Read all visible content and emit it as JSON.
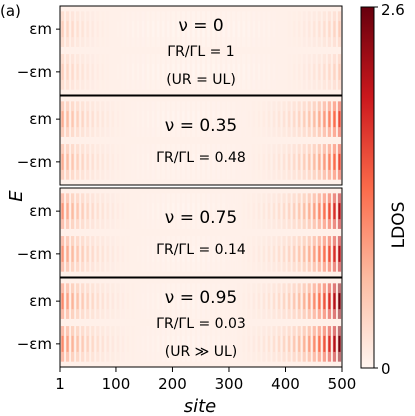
{
  "panel_label": "(a)",
  "chart_data": {
    "type": "heatmap",
    "title": "",
    "xlabel": "site",
    "ylabel": "E",
    "xlim": [
      1,
      500
    ],
    "x_ticks": [
      {
        "value": 1,
        "label": "1"
      },
      {
        "value": 100,
        "label": "100"
      },
      {
        "value": 200,
        "label": "200"
      },
      {
        "value": 300,
        "label": "300"
      },
      {
        "value": 400,
        "label": "400"
      },
      {
        "value": 500,
        "label": "500"
      }
    ],
    "y_tick_labels": [
      "εm",
      "−εm"
    ],
    "colorbar": {
      "label": "LDOS",
      "min": 0,
      "max": 2.6,
      "min_label": "0",
      "max_label": "2.6",
      "low_color": "#fff5f0",
      "mid_color": "#fb6a4a",
      "high_color": "#67000d"
    },
    "panels": [
      {
        "nu": "ν = 0",
        "ratio": "ΓR/ΓL = 1",
        "note": "(UR = UL)",
        "left_peak": 0.45,
        "right_peak": 0.45
      },
      {
        "nu": "ν = 0.35",
        "ratio": "ΓR/ΓL = 0.48",
        "note": "",
        "left_peak": 0.8,
        "right_peak": 1.6
      },
      {
        "nu": "ν = 0.75",
        "ratio": "ΓR/ΓL = 0.14",
        "note": "",
        "left_peak": 1.0,
        "right_peak": 2.2
      },
      {
        "nu": "ν = 0.95",
        "ratio": "ΓR/ΓL = 0.03",
        "note": "(UR ≫ UL)",
        "left_peak": 1.1,
        "right_peak": 2.6
      }
    ]
  }
}
